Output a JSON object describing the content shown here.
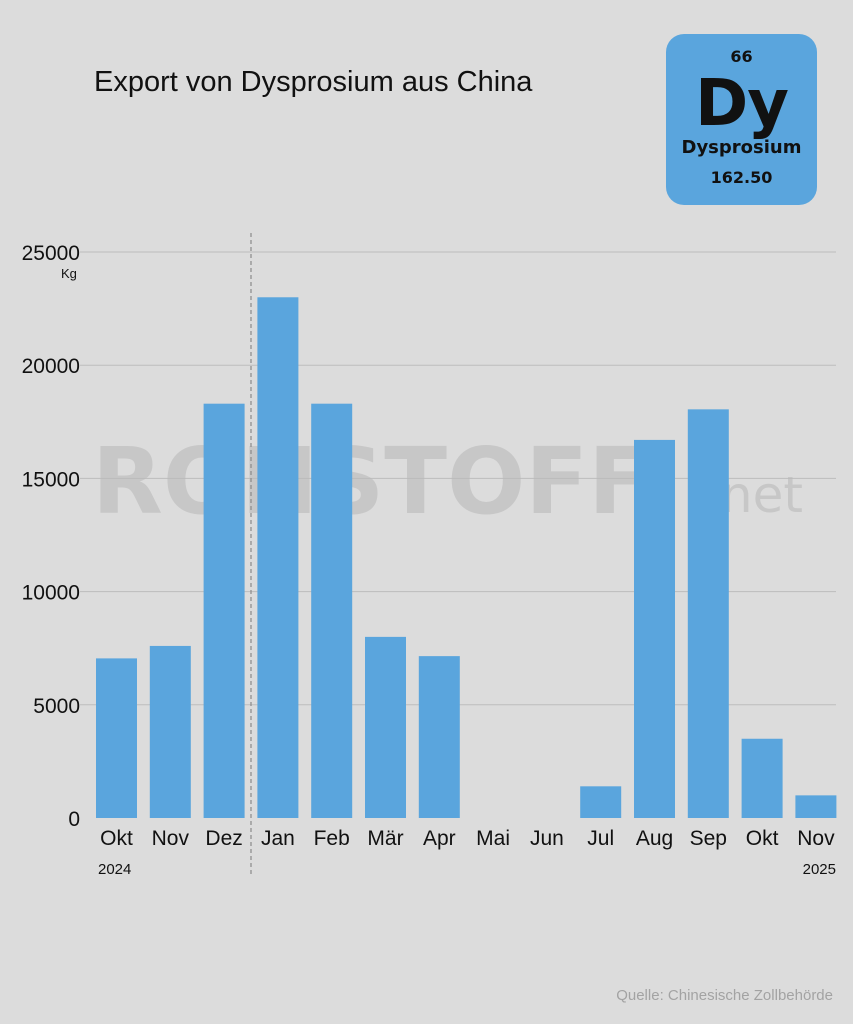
{
  "title": "Export von Dysprosium aus China",
  "element": {
    "number": "66",
    "symbol": "Dy",
    "name": "Dysprosium",
    "mass": "162.50",
    "tile_color": "#5aa5dd"
  },
  "watermark": {
    "main": "ROHSTOFF",
    "suffix": ".net"
  },
  "source": "Quelle: Chinesische Zollbehörde",
  "chart_data": {
    "type": "bar",
    "title": "Export von Dysprosium aus China",
    "xlabel": "",
    "ylabel": "Kg",
    "unit": "Kg",
    "ylim": [
      0,
      25000
    ],
    "yticks": [
      0,
      5000,
      10000,
      15000,
      20000,
      25000
    ],
    "grid": true,
    "bar_color": "#5aa5dd",
    "categories": [
      "Okt",
      "Nov",
      "Dez",
      "Jan",
      "Feb",
      "Mär",
      "Apr",
      "Mai",
      "Jun",
      "Jul",
      "Aug",
      "Sep",
      "Okt",
      "Nov"
    ],
    "values": [
      7050,
      7600,
      18300,
      23000,
      18300,
      8000,
      7150,
      0,
      0,
      1400,
      16700,
      18050,
      3500,
      1000
    ],
    "years": [
      {
        "label": "2024",
        "start_index": 0
      },
      {
        "label": "2025",
        "start_index": 3
      }
    ],
    "year_divider_after_index": 2
  }
}
